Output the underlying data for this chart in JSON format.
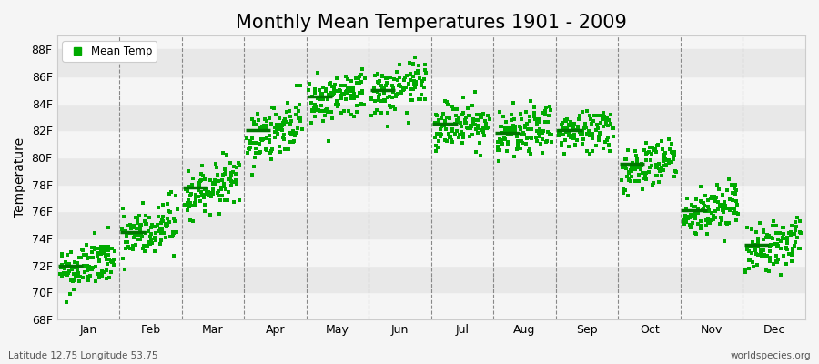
{
  "title": "Monthly Mean Temperatures 1901 - 2009",
  "ylabel": "Temperature",
  "xlabel_bottom_left": "Latitude 12.75 Longitude 53.75",
  "xlabel_bottom_right": "worldspecies.org",
  "ylim": [
    68,
    89
  ],
  "yticks": [
    68,
    70,
    72,
    74,
    76,
    78,
    80,
    82,
    84,
    86,
    88
  ],
  "ytick_labels": [
    "68F",
    "70F",
    "72F",
    "74F",
    "76F",
    "78F",
    "80F",
    "82F",
    "84F",
    "86F",
    "88F"
  ],
  "months": [
    "Jan",
    "Feb",
    "Mar",
    "Apr",
    "May",
    "Jun",
    "Jul",
    "Aug",
    "Sep",
    "Oct",
    "Nov",
    "Dec"
  ],
  "mean_temps": [
    72.0,
    74.5,
    77.8,
    82.0,
    84.5,
    85.0,
    82.5,
    81.8,
    82.0,
    79.5,
    76.1,
    73.5
  ],
  "dot_color": "#00aa00",
  "mean_line_color": "#007700",
  "background_color": "#f5f5f5",
  "band_color_light": "#f5f5f5",
  "band_color_dark": "#e8e8e8",
  "grid_color": "#888888",
  "title_fontsize": 15,
  "axis_label_fontsize": 10,
  "tick_fontsize": 9,
  "legend_label": "Mean Temp",
  "seed": 42,
  "n_years": 109,
  "spread_per_month": [
    0.9,
    1.1,
    0.8,
    1.0,
    0.9,
    0.9,
    0.9,
    0.9,
    0.8,
    0.9,
    0.9,
    0.9
  ],
  "trend_per_month": [
    0.008,
    0.012,
    0.015,
    0.015,
    0.01,
    0.008,
    0.006,
    0.006,
    0.006,
    0.01,
    0.01,
    0.01
  ]
}
